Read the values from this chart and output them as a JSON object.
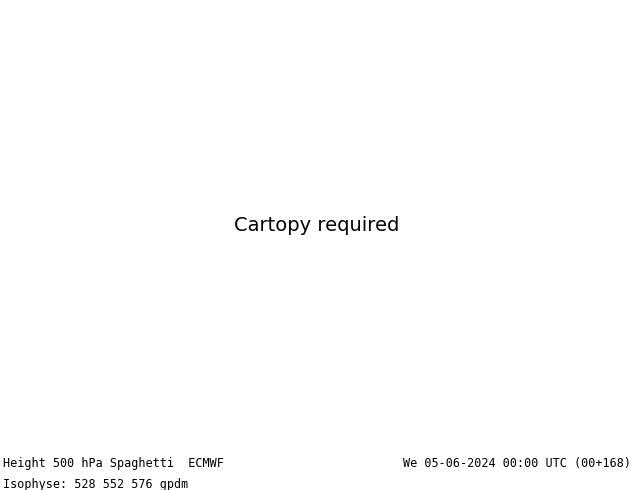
{
  "title_left": "Height 500 hPa Spaghetti  ECMWF",
  "title_right": "We 05-06-2024 00:00 UTC (00+168)",
  "subtitle": "Isophyse: 528 552 576 gpdm",
  "background_color": "#ffffff",
  "land_color": "#c8e6a0",
  "ocean_color": "#d4e8f0",
  "lake_color": "#d4e8f0",
  "border_color": "#666666",
  "state_color": "#888888",
  "text_color": "#000000",
  "label_fontsize": 8.5,
  "fig_width": 6.34,
  "fig_height": 4.9,
  "map_extent": [
    -170,
    -50,
    20,
    75
  ],
  "spaghetti_colors": [
    "#cc00cc",
    "#0000cc",
    "#00aaaa",
    "#008800",
    "#cc8800",
    "#cc0000",
    "#008888",
    "#8800aa",
    "#cc4400",
    "#0077cc",
    "#cc0077",
    "#aaaa00",
    "#00aa44",
    "#ff6600",
    "#6600ff",
    "#ff00aa",
    "#00ccff",
    "#ffcc00",
    "#ff0066",
    "#33cc33"
  ],
  "mean_color": "#444444",
  "contour_levels": [
    528,
    552,
    576
  ],
  "n_members": 20,
  "seed": 42
}
